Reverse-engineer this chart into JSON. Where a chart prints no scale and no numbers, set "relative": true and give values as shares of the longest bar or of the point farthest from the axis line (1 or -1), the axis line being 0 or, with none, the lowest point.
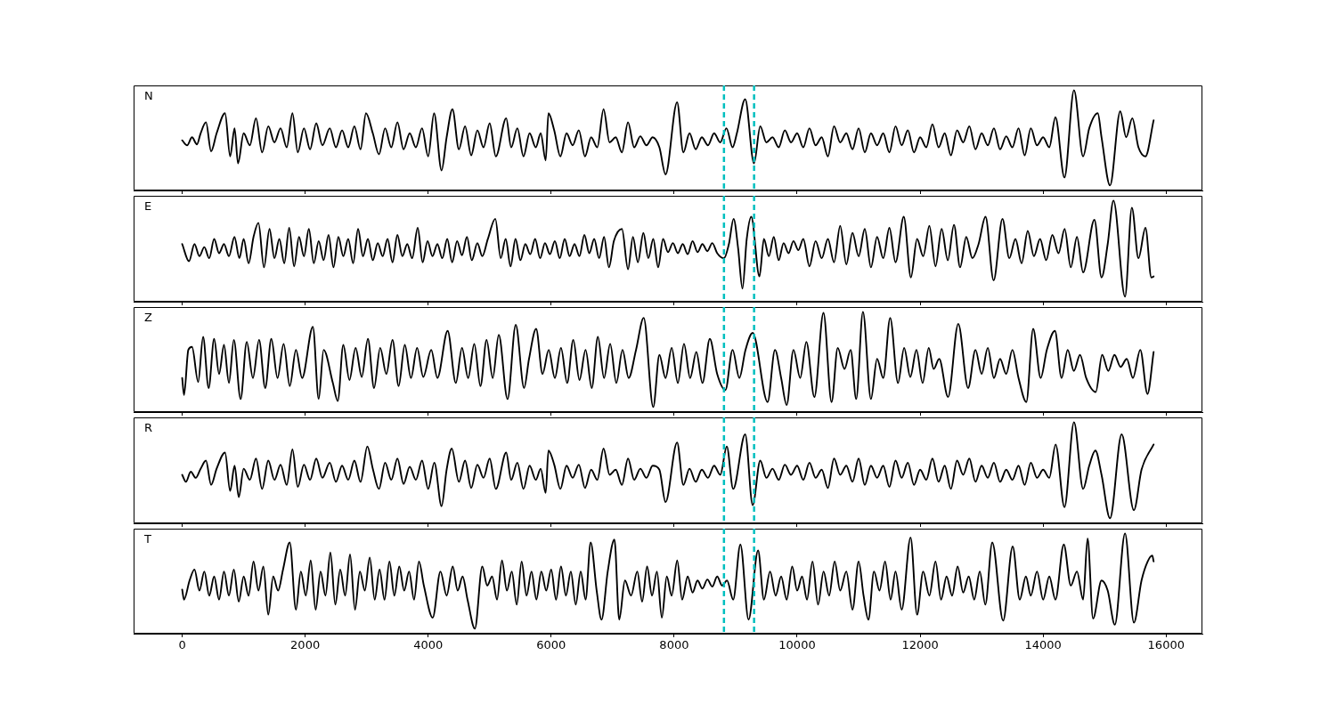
{
  "chart_data": [
    {
      "type": "line",
      "annotations": [
        "N"
      ],
      "relative": true,
      "color": "#000000",
      "marker": "none",
      "line_style": "solid",
      "xlim": [
        -790,
        16590
      ],
      "xticks": [
        0,
        2000,
        4000,
        6000,
        8000,
        10000,
        12000,
        14000,
        16000
      ],
      "tick_labels": false,
      "ref_lines": [
        {
          "axis": "x",
          "value": 8810,
          "color": "#00bfbf",
          "line_style": "dashed"
        },
        {
          "axis": "x",
          "value": 9300,
          "color": "#00bfbf",
          "line_style": "dashed"
        }
      ],
      "x": [
        0,
        80,
        160,
        240,
        300,
        387,
        470,
        560,
        697,
        780,
        852,
        908,
        1000,
        1100,
        1200,
        1300,
        1400,
        1500,
        1600,
        1700,
        1793,
        1880,
        1980,
        2080,
        2180,
        2280,
        2400,
        2500,
        2600,
        2700,
        2800,
        2900,
        2989,
        3100,
        3200,
        3300,
        3400,
        3500,
        3600,
        3700,
        3800,
        3900,
        4000,
        4096,
        4218,
        4300,
        4395,
        4500,
        4600,
        4700,
        4800,
        4900,
        5000,
        5100,
        5269,
        5350,
        5450,
        5550,
        5650,
        5750,
        5830,
        5911,
        5956,
        6050,
        6150,
        6250,
        6350,
        6450,
        6550,
        6650,
        6750,
        6852,
        6950,
        7050,
        7150,
        7250,
        7350,
        7450,
        7550,
        7650,
        7760,
        7860,
        8048,
        8150,
        8250,
        8350,
        8450,
        8550,
        8650,
        8750,
        8850,
        8950,
        9020,
        9155,
        9299,
        9400,
        9500,
        9600,
        9700,
        9800,
        9900,
        10000,
        10100,
        10200,
        10300,
        10400,
        10500,
        10600,
        10700,
        10800,
        10900,
        11000,
        11100,
        11200,
        11300,
        11400,
        11500,
        11600,
        11700,
        11800,
        11900,
        12000,
        12100,
        12200,
        12300,
        12400,
        12500,
        12600,
        12700,
        12800,
        12900,
        13000,
        13100,
        13200,
        13300,
        13400,
        13500,
        13600,
        13700,
        13800,
        13900,
        14000,
        14100,
        14200,
        14347,
        14502,
        14650,
        14750,
        14889,
        14950,
        15088,
        15254,
        15350,
        15450,
        15550,
        15664,
        15797
      ],
      "values": [
        0.5,
        0.45,
        0.53,
        0.46,
        0.57,
        0.68,
        0.39,
        0.57,
        0.77,
        0.34,
        0.62,
        0.27,
        0.57,
        0.45,
        0.72,
        0.38,
        0.64,
        0.48,
        0.62,
        0.43,
        0.77,
        0.38,
        0.62,
        0.41,
        0.67,
        0.45,
        0.62,
        0.43,
        0.6,
        0.43,
        0.64,
        0.41,
        0.77,
        0.57,
        0.36,
        0.62,
        0.43,
        0.68,
        0.41,
        0.57,
        0.43,
        0.62,
        0.34,
        0.77,
        0.2,
        0.53,
        0.81,
        0.41,
        0.64,
        0.35,
        0.6,
        0.43,
        0.67,
        0.34,
        0.72,
        0.43,
        0.62,
        0.34,
        0.57,
        0.43,
        0.57,
        0.3,
        0.77,
        0.6,
        0.34,
        0.57,
        0.45,
        0.6,
        0.34,
        0.53,
        0.43,
        0.81,
        0.48,
        0.53,
        0.38,
        0.68,
        0.43,
        0.54,
        0.45,
        0.53,
        0.43,
        0.16,
        0.88,
        0.38,
        0.57,
        0.41,
        0.53,
        0.45,
        0.57,
        0.48,
        0.62,
        0.43,
        0.57,
        0.91,
        0.27,
        0.64,
        0.48,
        0.53,
        0.43,
        0.6,
        0.48,
        0.57,
        0.43,
        0.62,
        0.45,
        0.53,
        0.34,
        0.64,
        0.48,
        0.57,
        0.41,
        0.62,
        0.38,
        0.57,
        0.45,
        0.57,
        0.38,
        0.64,
        0.45,
        0.6,
        0.38,
        0.53,
        0.43,
        0.66,
        0.43,
        0.57,
        0.35,
        0.6,
        0.48,
        0.64,
        0.41,
        0.57,
        0.45,
        0.62,
        0.41,
        0.54,
        0.43,
        0.62,
        0.35,
        0.62,
        0.45,
        0.53,
        0.43,
        0.73,
        0.13,
        1,
        0.34,
        0.62,
        0.77,
        0.53,
        0.05,
        0.79,
        0.53,
        0.72,
        0.43,
        0.34,
        0.7
      ]
    },
    {
      "type": "line",
      "annotations": [
        "E"
      ],
      "relative": true,
      "color": "#000000",
      "marker": "none",
      "line_style": "solid",
      "xlim": [
        -790,
        16590
      ],
      "xticks": [
        0,
        2000,
        4000,
        6000,
        8000,
        10000,
        12000,
        14000,
        16000
      ],
      "tick_labels": false,
      "ref_lines": [
        {
          "axis": "x",
          "value": 8810,
          "color": "#00bfbf",
          "line_style": "dashed"
        },
        {
          "axis": "x",
          "value": 9300,
          "color": "#00bfbf",
          "line_style": "dashed"
        }
      ],
      "x": [
        0,
        111,
        200,
        280,
        360,
        440,
        520,
        600,
        680,
        760,
        850,
        930,
        1000,
        1080,
        1160,
        1240,
        1330,
        1420,
        1500,
        1580,
        1660,
        1740,
        1820,
        1900,
        1980,
        2060,
        2140,
        2220,
        2300,
        2380,
        2460,
        2540,
        2620,
        2700,
        2780,
        2860,
        2940,
        3020,
        3100,
        3180,
        3260,
        3340,
        3420,
        3500,
        3580,
        3660,
        3740,
        3830,
        3910,
        3990,
        4070,
        4150,
        4230,
        4310,
        4390,
        4470,
        4550,
        4630,
        4710,
        4800,
        4880,
        4970,
        5092,
        5180,
        5260,
        5340,
        5420,
        5500,
        5580,
        5660,
        5740,
        5820,
        5900,
        5980,
        6060,
        6140,
        6220,
        6300,
        6380,
        6460,
        6540,
        6620,
        6700,
        6780,
        6860,
        6940,
        7020,
        7151,
        7250,
        7330,
        7410,
        7500,
        7580,
        7660,
        7740,
        7820,
        7900,
        7980,
        8060,
        8140,
        8220,
        8300,
        8380,
        8460,
        8540,
        8620,
        8700,
        8810,
        8890,
        8967,
        9040,
        9111,
        9180,
        9254,
        9387,
        9460,
        9540,
        9620,
        9700,
        9780,
        9860,
        9940,
        10020,
        10100,
        10200,
        10300,
        10400,
        10500,
        10600,
        10700,
        10800,
        10900,
        11000,
        11100,
        11200,
        11300,
        11400,
        11500,
        11600,
        11734,
        11850,
        11950,
        12050,
        12150,
        12250,
        12350,
        12450,
        12550,
        12650,
        12750,
        12850,
        12950,
        13063,
        13195,
        13339,
        13450,
        13550,
        13650,
        13750,
        13850,
        13950,
        14050,
        14150,
        14250,
        14350,
        14450,
        14550,
        14650,
        14834,
        14950,
        15050,
        15144,
        15332,
        15443,
        15550,
        15664,
        15760,
        15797
      ],
      "values": [
        0.57,
        0.4,
        0.57,
        0.45,
        0.54,
        0.43,
        0.62,
        0.48,
        0.57,
        0.45,
        0.64,
        0.43,
        0.62,
        0.38,
        0.64,
        0.78,
        0.34,
        0.72,
        0.43,
        0.62,
        0.38,
        0.73,
        0.35,
        0.64,
        0.45,
        0.72,
        0.38,
        0.6,
        0.41,
        0.66,
        0.34,
        0.64,
        0.45,
        0.62,
        0.38,
        0.72,
        0.45,
        0.62,
        0.41,
        0.58,
        0.45,
        0.62,
        0.39,
        0.66,
        0.45,
        0.57,
        0.43,
        0.73,
        0.39,
        0.6,
        0.45,
        0.57,
        0.43,
        0.62,
        0.39,
        0.6,
        0.46,
        0.64,
        0.41,
        0.58,
        0.45,
        0.62,
        0.82,
        0.43,
        0.62,
        0.35,
        0.62,
        0.41,
        0.57,
        0.47,
        0.62,
        0.43,
        0.58,
        0.47,
        0.6,
        0.43,
        0.62,
        0.45,
        0.57,
        0.45,
        0.66,
        0.48,
        0.62,
        0.43,
        0.64,
        0.34,
        0.6,
        0.72,
        0.32,
        0.64,
        0.39,
        0.68,
        0.43,
        0.62,
        0.34,
        0.62,
        0.49,
        0.58,
        0.48,
        0.57,
        0.47,
        0.6,
        0.49,
        0.57,
        0.5,
        0.58,
        0.48,
        0.43,
        0.57,
        0.82,
        0.53,
        0.13,
        0.62,
        0.84,
        0.25,
        0.62,
        0.45,
        0.64,
        0.41,
        0.58,
        0.48,
        0.6,
        0.51,
        0.62,
        0.35,
        0.6,
        0.43,
        0.62,
        0.39,
        0.75,
        0.37,
        0.68,
        0.45,
        0.72,
        0.34,
        0.64,
        0.43,
        0.73,
        0.39,
        0.84,
        0.24,
        0.62,
        0.45,
        0.75,
        0.35,
        0.72,
        0.41,
        0.76,
        0.34,
        0.64,
        0.43,
        0.57,
        0.84,
        0.21,
        0.82,
        0.43,
        0.62,
        0.38,
        0.7,
        0.45,
        0.62,
        0.41,
        0.66,
        0.48,
        0.72,
        0.34,
        0.64,
        0.29,
        0.81,
        0.24,
        0.57,
        1,
        0.05,
        0.93,
        0.43,
        0.73,
        0.24,
        0.25
      ]
    },
    {
      "type": "line",
      "annotations": [
        "Z"
      ],
      "relative": true,
      "color": "#000000",
      "marker": "none",
      "line_style": "solid",
      "xlim": [
        -790,
        16590
      ],
      "xticks": [
        0,
        2000,
        4000,
        6000,
        8000,
        10000,
        12000,
        14000,
        16000
      ],
      "tick_labels": false,
      "ref_lines": [
        {
          "axis": "x",
          "value": 8810,
          "color": "#00bfbf",
          "line_style": "dashed"
        },
        {
          "axis": "x",
          "value": 9300,
          "color": "#00bfbf",
          "line_style": "dashed"
        }
      ],
      "x": [
        0,
        30,
        100,
        160,
        260,
        340,
        430,
        520,
        600,
        680,
        760,
        840,
        950,
        1050,
        1150,
        1250,
        1350,
        1450,
        1550,
        1650,
        1750,
        1850,
        1950,
        2125,
        2220,
        2300,
        2450,
        2530,
        2620,
        2720,
        2820,
        2920,
        3020,
        3120,
        3220,
        3320,
        3420,
        3520,
        3620,
        3720,
        3820,
        3920,
        4050,
        4150,
        4317,
        4450,
        4550,
        4650,
        4750,
        4850,
        4950,
        5050,
        5148,
        5291,
        5424,
        5560,
        5640,
        5756,
        5860,
        5960,
        6060,
        6160,
        6260,
        6360,
        6460,
        6560,
        6660,
        6760,
        6860,
        6960,
        7060,
        7160,
        7260,
        7380,
        7505,
        7660,
        7760,
        7860,
        7960,
        8060,
        8160,
        8260,
        8360,
        8460,
        8580,
        8700,
        8834,
        8950,
        9060,
        9160,
        9277,
        9520,
        9640,
        9740,
        9830,
        9940,
        10050,
        10150,
        10280,
        10428,
        10560,
        10660,
        10770,
        10870,
        10960,
        11070,
        11200,
        11300,
        11400,
        11513,
        11640,
        11740,
        11840,
        11940,
        12040,
        12140,
        12220,
        12310,
        12454,
        12620,
        12780,
        12900,
        13000,
        13100,
        13200,
        13300,
        13400,
        13500,
        13600,
        13727,
        13838,
        13960,
        14060,
        14192,
        14300,
        14400,
        14500,
        14600,
        14700,
        14856,
        14960,
        15060,
        15160,
        15260,
        15360,
        15460,
        15580,
        15697,
        15797
      ],
      "values": [
        0.34,
        0.17,
        0.62,
        0.65,
        0.3,
        0.75,
        0.24,
        0.73,
        0.38,
        0.67,
        0.29,
        0.72,
        0.13,
        0.7,
        0.34,
        0.72,
        0.24,
        0.73,
        0.34,
        0.68,
        0.26,
        0.62,
        0.34,
        0.85,
        0.13,
        0.62,
        0.29,
        0.11,
        0.67,
        0.32,
        0.64,
        0.35,
        0.73,
        0.24,
        0.64,
        0.38,
        0.72,
        0.26,
        0.67,
        0.34,
        0.64,
        0.35,
        0.62,
        0.34,
        0.81,
        0.29,
        0.64,
        0.34,
        0.68,
        0.26,
        0.72,
        0.34,
        0.77,
        0.13,
        0.87,
        0.24,
        0.53,
        0.83,
        0.38,
        0.62,
        0.34,
        0.64,
        0.29,
        0.72,
        0.32,
        0.62,
        0.24,
        0.75,
        0.34,
        0.68,
        0.29,
        0.62,
        0.34,
        0.62,
        0.94,
        0.05,
        0.57,
        0.34,
        0.64,
        0.29,
        0.68,
        0.34,
        0.6,
        0.29,
        0.73,
        0.38,
        0.22,
        0.62,
        0.34,
        0.62,
        0.79,
        0.1,
        0.62,
        0.34,
        0.07,
        0.62,
        0.34,
        0.7,
        0.15,
        0.99,
        0.1,
        0.64,
        0.43,
        0.62,
        0.13,
        1,
        0.13,
        0.53,
        0.34,
        0.94,
        0.29,
        0.64,
        0.35,
        0.62,
        0.29,
        0.64,
        0.43,
        0.53,
        0.15,
        0.88,
        0.24,
        0.62,
        0.38,
        0.64,
        0.34,
        0.53,
        0.38,
        0.62,
        0.34,
        0.1,
        0.83,
        0.34,
        0.62,
        0.81,
        0.34,
        0.62,
        0.41,
        0.57,
        0.34,
        0.2,
        0.57,
        0.41,
        0.57,
        0.45,
        0.53,
        0.34,
        0.62,
        0.18,
        0.6
      ]
    },
    {
      "type": "line",
      "annotations": [
        "R"
      ],
      "relative": true,
      "color": "#000000",
      "marker": "none",
      "line_style": "solid",
      "xlim": [
        -790,
        16590
      ],
      "xticks": [
        0,
        2000,
        4000,
        6000,
        8000,
        10000,
        12000,
        14000,
        16000
      ],
      "tick_labels": false,
      "ref_lines": [
        {
          "axis": "x",
          "value": 8810,
          "color": "#00bfbf",
          "line_style": "dashed"
        },
        {
          "axis": "x",
          "value": 9300,
          "color": "#00bfbf",
          "line_style": "dashed"
        }
      ],
      "x": [
        0,
        60,
        140,
        220,
        300,
        387,
        470,
        560,
        697,
        780,
        852,
        920,
        1000,
        1100,
        1200,
        1300,
        1400,
        1500,
        1600,
        1700,
        1793,
        1880,
        1980,
        2080,
        2180,
        2280,
        2400,
        2500,
        2600,
        2700,
        2800,
        2900,
        3011,
        3100,
        3200,
        3300,
        3400,
        3500,
        3600,
        3700,
        3800,
        3900,
        4000,
        4100,
        4218,
        4300,
        4384,
        4500,
        4600,
        4700,
        4800,
        4900,
        5000,
        5100,
        5269,
        5350,
        5450,
        5550,
        5650,
        5750,
        5830,
        5911,
        5956,
        6050,
        6150,
        6250,
        6350,
        6450,
        6550,
        6650,
        6750,
        6852,
        6950,
        7050,
        7150,
        7250,
        7350,
        7450,
        7550,
        7650,
        7760,
        7860,
        8048,
        8150,
        8250,
        8350,
        8450,
        8550,
        8650,
        8750,
        8856,
        8960,
        9155,
        9277,
        9400,
        9500,
        9600,
        9700,
        9800,
        9900,
        10000,
        10100,
        10200,
        10300,
        10400,
        10500,
        10600,
        10700,
        10800,
        10900,
        11000,
        11100,
        11200,
        11300,
        11400,
        11500,
        11600,
        11700,
        11800,
        11900,
        12000,
        12100,
        12200,
        12300,
        12400,
        12500,
        12600,
        12700,
        12800,
        12900,
        13000,
        13100,
        13200,
        13300,
        13400,
        13500,
        13600,
        13700,
        13800,
        13900,
        14000,
        14100,
        14203,
        14347,
        14502,
        14650,
        14750,
        14850,
        14950,
        15088,
        15277,
        15476,
        15600,
        15797
      ],
      "values": [
        0.48,
        0.41,
        0.51,
        0.45,
        0.54,
        0.62,
        0.38,
        0.54,
        0.7,
        0.32,
        0.57,
        0.26,
        0.54,
        0.43,
        0.64,
        0.34,
        0.62,
        0.43,
        0.58,
        0.38,
        0.73,
        0.36,
        0.58,
        0.43,
        0.64,
        0.45,
        0.6,
        0.41,
        0.57,
        0.43,
        0.62,
        0.41,
        0.76,
        0.54,
        0.34,
        0.6,
        0.43,
        0.64,
        0.39,
        0.56,
        0.43,
        0.62,
        0.34,
        0.6,
        0.17,
        0.53,
        0.74,
        0.41,
        0.62,
        0.35,
        0.58,
        0.45,
        0.64,
        0.34,
        0.7,
        0.43,
        0.6,
        0.34,
        0.57,
        0.43,
        0.54,
        0.3,
        0.72,
        0.58,
        0.34,
        0.57,
        0.45,
        0.58,
        0.35,
        0.53,
        0.43,
        0.74,
        0.48,
        0.53,
        0.38,
        0.64,
        0.43,
        0.54,
        0.45,
        0.57,
        0.53,
        0.21,
        0.8,
        0.38,
        0.54,
        0.41,
        0.53,
        0.45,
        0.57,
        0.48,
        0.76,
        0.34,
        0.88,
        0.18,
        0.62,
        0.45,
        0.54,
        0.43,
        0.58,
        0.48,
        0.57,
        0.43,
        0.6,
        0.45,
        0.53,
        0.35,
        0.64,
        0.48,
        0.57,
        0.41,
        0.64,
        0.38,
        0.57,
        0.45,
        0.57,
        0.36,
        0.62,
        0.45,
        0.6,
        0.38,
        0.53,
        0.43,
        0.64,
        0.41,
        0.57,
        0.34,
        0.62,
        0.48,
        0.64,
        0.41,
        0.57,
        0.45,
        0.6,
        0.41,
        0.53,
        0.43,
        0.57,
        0.38,
        0.6,
        0.45,
        0.53,
        0.45,
        0.78,
        0.16,
        1,
        0.34,
        0.57,
        0.72,
        0.48,
        0.05,
        0.88,
        0.13,
        0.53,
        0.78
      ]
    },
    {
      "type": "line",
      "annotations": [
        "T"
      ],
      "relative": true,
      "color": "#000000",
      "marker": "none",
      "line_style": "solid",
      "xlim": [
        -790,
        16590
      ],
      "xticks": [
        0,
        2000,
        4000,
        6000,
        8000,
        10000,
        12000,
        14000,
        16000
      ],
      "tick_labels": "x",
      "ref_lines": [
        {
          "axis": "x",
          "value": 8810,
          "color": "#00bfbf",
          "line_style": "dashed"
        },
        {
          "axis": "x",
          "value": 9300,
          "color": "#00bfbf",
          "line_style": "dashed"
        }
      ],
      "x": [
        0,
        30,
        120,
        200,
        280,
        360,
        440,
        520,
        600,
        680,
        760,
        840,
        920,
        1000,
        1080,
        1160,
        1240,
        1320,
        1400,
        1480,
        1560,
        1640,
        1749,
        1850,
        1930,
        2010,
        2090,
        2170,
        2250,
        2330,
        2410,
        2490,
        2570,
        2650,
        2730,
        2810,
        2890,
        2970,
        3050,
        3130,
        3210,
        3290,
        3370,
        3450,
        3530,
        3610,
        3690,
        3770,
        3850,
        3930,
        4074,
        4200,
        4300,
        4400,
        4480,
        4560,
        4640,
        4760,
        4880,
        4960,
        5040,
        5120,
        5200,
        5280,
        5360,
        5440,
        5520,
        5600,
        5680,
        5760,
        5840,
        5920,
        6000,
        6080,
        6160,
        6240,
        6320,
        6400,
        6480,
        6560,
        6642,
        6740,
        6819,
        6920,
        7029,
        7107,
        7200,
        7300,
        7400,
        7480,
        7560,
        7640,
        7720,
        7800,
        7880,
        7960,
        8050,
        8130,
        8220,
        8300,
        8380,
        8460,
        8540,
        8620,
        8700,
        8780,
        8860,
        8960,
        9077,
        9210,
        9365,
        9460,
        9560,
        9650,
        9740,
        9830,
        9920,
        10000,
        10080,
        10160,
        10250,
        10340,
        10430,
        10520,
        10610,
        10700,
        10800,
        10900,
        11000,
        11080,
        11159,
        11250,
        11340,
        11430,
        11520,
        11600,
        11700,
        11845,
        11950,
        12050,
        12150,
        12250,
        12340,
        12430,
        12520,
        12610,
        12700,
        12790,
        12880,
        12970,
        13060,
        13173,
        13350,
        13505,
        13620,
        13720,
        13800,
        13900,
        14000,
        14100,
        14200,
        14336,
        14450,
        14550,
        14650,
        14723,
        14812,
        14950,
        15050,
        15166,
        15332,
        15476,
        15600,
        15700,
        15775,
        15797
      ],
      "values": [
        0.44,
        0.34,
        0.53,
        0.64,
        0.43,
        0.62,
        0.38,
        0.57,
        0.34,
        0.62,
        0.38,
        0.64,
        0.32,
        0.57,
        0.38,
        0.72,
        0.43,
        0.67,
        0.19,
        0.57,
        0.43,
        0.64,
        0.91,
        0.24,
        0.62,
        0.38,
        0.73,
        0.24,
        0.62,
        0.38,
        0.81,
        0.29,
        0.64,
        0.38,
        0.79,
        0.24,
        0.62,
        0.43,
        0.76,
        0.34,
        0.64,
        0.34,
        0.72,
        0.38,
        0.67,
        0.43,
        0.62,
        0.34,
        0.72,
        0.48,
        0.16,
        0.62,
        0.38,
        0.67,
        0.43,
        0.57,
        0.34,
        0.05,
        0.67,
        0.48,
        0.57,
        0.34,
        0.73,
        0.43,
        0.62,
        0.29,
        0.72,
        0.38,
        0.62,
        0.34,
        0.62,
        0.43,
        0.64,
        0.34,
        0.67,
        0.38,
        0.62,
        0.29,
        0.62,
        0.34,
        0.91,
        0.43,
        0.14,
        0.62,
        0.94,
        0.14,
        0.53,
        0.38,
        0.62,
        0.32,
        0.67,
        0.38,
        0.62,
        0.16,
        0.57,
        0.38,
        0.73,
        0.34,
        0.57,
        0.41,
        0.53,
        0.45,
        0.54,
        0.47,
        0.57,
        0.48,
        0.53,
        0.34,
        0.89,
        0.14,
        0.83,
        0.34,
        0.62,
        0.38,
        0.57,
        0.34,
        0.67,
        0.43,
        0.57,
        0.34,
        0.72,
        0.29,
        0.62,
        0.38,
        0.72,
        0.43,
        0.62,
        0.24,
        0.72,
        0.38,
        0.14,
        0.62,
        0.43,
        0.72,
        0.34,
        0.62,
        0.24,
        0.96,
        0.19,
        0.62,
        0.38,
        0.72,
        0.34,
        0.57,
        0.38,
        0.67,
        0.41,
        0.57,
        0.34,
        0.62,
        0.29,
        0.91,
        0.13,
        0.87,
        0.34,
        0.57,
        0.38,
        0.62,
        0.34,
        0.57,
        0.34,
        0.89,
        0.48,
        0.62,
        0.34,
        0.95,
        0.15,
        0.53,
        0.43,
        0.09,
        1,
        0.11,
        0.53,
        0.72,
        0.78,
        0.72
      ]
    }
  ]
}
